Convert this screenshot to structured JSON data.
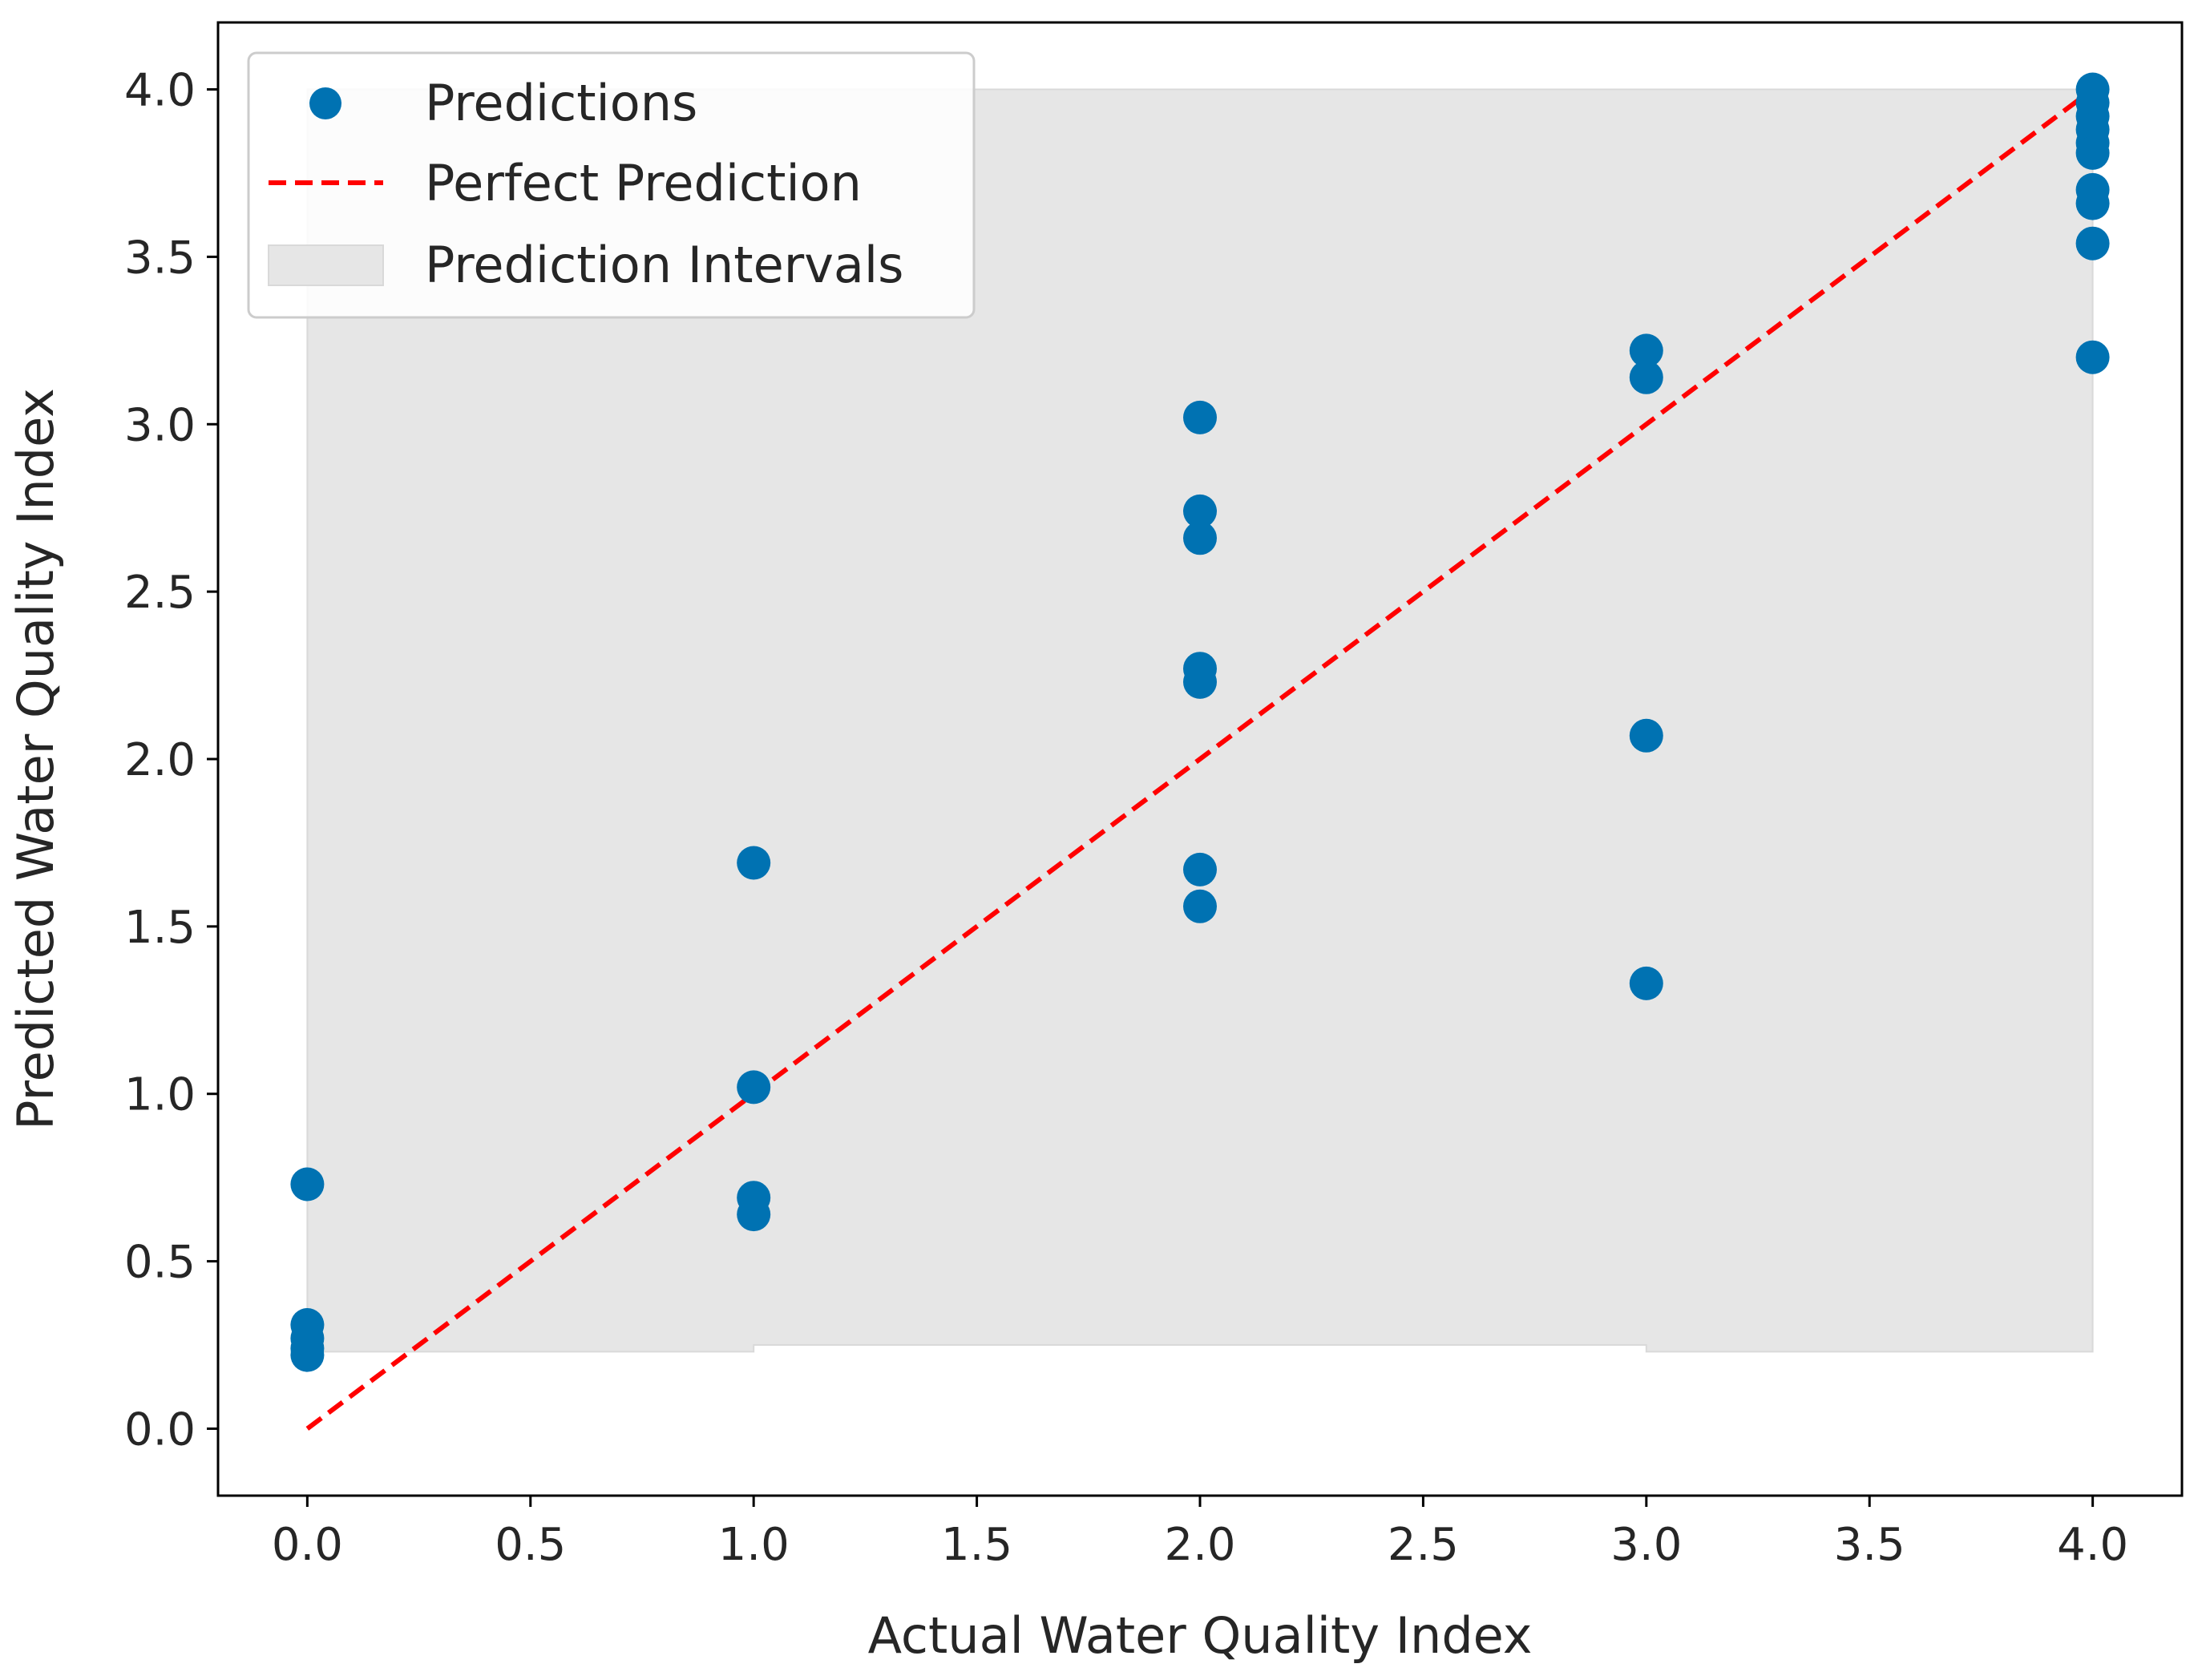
{
  "chart_data": {
    "type": "scatter",
    "title": "",
    "xlabel": "Actual Water Quality Index",
    "ylabel": "Predicted Water Quality Index",
    "xlim": [
      -0.2,
      4.2
    ],
    "ylim": [
      -0.2,
      4.2
    ],
    "xticks": [
      "0.0",
      "0.5",
      "1.0",
      "1.5",
      "2.0",
      "2.5",
      "3.0",
      "3.5",
      "4.0"
    ],
    "yticks": [
      "0.0",
      "0.5",
      "1.0",
      "1.5",
      "2.0",
      "2.5",
      "3.0",
      "3.5",
      "4.0"
    ],
    "grid": false,
    "legend_position": "top-left",
    "legend": {
      "predictions": "Predictions",
      "perfect": "Perfect Prediction",
      "intervals": "Prediction Intervals"
    },
    "colors": {
      "points": "#0072B2",
      "perfect_line": "#ff0000",
      "interval_fill": "#e6e6e6",
      "interval_edge": "#d9d9d9"
    },
    "perfect_line": {
      "x": [
        0,
        4
      ],
      "y": [
        0,
        4
      ]
    },
    "prediction_interval": {
      "x": [
        0,
        1,
        1,
        2,
        2,
        3,
        3,
        4
      ],
      "lower": [
        0.23,
        0.23,
        0.25,
        0.25,
        0.25,
        0.25,
        0.23,
        0.23
      ],
      "upper": [
        4.0,
        4.0,
        4.0,
        4.0,
        4.0,
        4.0,
        4.0,
        4.0
      ]
    },
    "series": [
      {
        "name": "Predictions",
        "points": [
          [
            0,
            0.73
          ],
          [
            0,
            0.31
          ],
          [
            0,
            0.27
          ],
          [
            0,
            0.24
          ],
          [
            0,
            0.22
          ],
          [
            1,
            1.69
          ],
          [
            1,
            1.02
          ],
          [
            1,
            0.69
          ],
          [
            1,
            0.64
          ],
          [
            2,
            3.02
          ],
          [
            2,
            2.74
          ],
          [
            2,
            2.66
          ],
          [
            2,
            2.27
          ],
          [
            2,
            2.23
          ],
          [
            2,
            1.67
          ],
          [
            2,
            1.56
          ],
          [
            3,
            3.22
          ],
          [
            3,
            3.14
          ],
          [
            3,
            2.07
          ],
          [
            3,
            1.33
          ],
          [
            4,
            4.0
          ],
          [
            4,
            3.96
          ],
          [
            4,
            3.92
          ],
          [
            4,
            3.88
          ],
          [
            4,
            3.84
          ],
          [
            4,
            3.81
          ],
          [
            4,
            3.7
          ],
          [
            4,
            3.66
          ],
          [
            4,
            3.54
          ],
          [
            4,
            3.2
          ]
        ]
      }
    ]
  }
}
